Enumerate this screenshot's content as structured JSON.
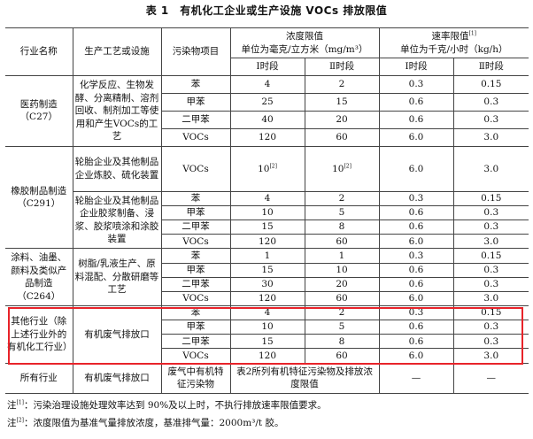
{
  "title": "表 1　有机化工企业或生产设施 VOCs 排放限值",
  "header": {
    "industry": "行业名称",
    "process": "生产工艺或设施",
    "pollutant": "污染物项目",
    "conc": "浓度限值",
    "conc_unit": "单位为毫克/立方米（mg/m³）",
    "rate": "速率限值",
    "rate_sup": "[1]",
    "rate_unit": "单位为千克/小时（kg/h）",
    "stage1": "Ⅰ时段",
    "stage2": "Ⅱ时段"
  },
  "pharma": {
    "industry": "医药制造（C27）",
    "process": "化学反应、生物发酵、分离精制、溶剂回收、制剂加工等使用和产生VOCs的工艺",
    "rows": [
      {
        "p": "苯",
        "c1": "4",
        "c2": "2",
        "r1": "0.3",
        "r2": "0.15"
      },
      {
        "p": "甲苯",
        "c1": "25",
        "c2": "15",
        "r1": "0.6",
        "r2": "0.3"
      },
      {
        "p": "二甲苯",
        "c1": "40",
        "c2": "20",
        "r1": "0.6",
        "r2": "0.3"
      },
      {
        "p": "VOCs",
        "c1": "120",
        "c2": "60",
        "r1": "6.0",
        "r2": "3.0"
      }
    ]
  },
  "rubber": {
    "industry": "橡胶制品制造（C291）",
    "process1": "轮胎企业及其他制品企业炼胶、硫化装置",
    "row1": {
      "p": "VOCs",
      "c1": "10",
      "c1_sup": "[2]",
      "c2": "10",
      "c2_sup": "[2]",
      "r1": "6.0",
      "r2": "3.0"
    },
    "process2": "轮胎企业及其他制品企业胶浆制备、浸浆、胶浆喷涂和涂胶装置",
    "rows": [
      {
        "p": "苯",
        "c1": "4",
        "c2": "2",
        "r1": "0.3",
        "r2": "0.15"
      },
      {
        "p": "甲苯",
        "c1": "10",
        "c2": "5",
        "r1": "0.6",
        "r2": "0.3"
      },
      {
        "p": "二甲苯",
        "c1": "15",
        "c2": "8",
        "r1": "0.6",
        "r2": "0.3"
      },
      {
        "p": "VOCs",
        "c1": "120",
        "c2": "60",
        "r1": "6.0",
        "r2": "3.0"
      }
    ]
  },
  "paint": {
    "industry": "涂料、油墨、颜料及类似产品制造（C264）",
    "process": "树脂/乳液生产、原料混配、分散研磨等工艺",
    "rows": [
      {
        "p": "苯",
        "c1": "1",
        "c2": "1",
        "r1": "0.3",
        "r2": "0.15"
      },
      {
        "p": "甲苯",
        "c1": "15",
        "c2": "10",
        "r1": "0.6",
        "r2": "0.3"
      },
      {
        "p": "二甲苯",
        "c1": "30",
        "c2": "20",
        "r1": "0.6",
        "r2": "0.3"
      },
      {
        "p": "VOCs",
        "c1": "120",
        "c2": "60",
        "r1": "6.0",
        "r2": "3.0"
      }
    ]
  },
  "other": {
    "industry": "其他行业（除上述行业外的有机化工行业）",
    "process": "有机废气排放口",
    "rows": [
      {
        "p": "苯",
        "c1": "4",
        "c2": "2",
        "r1": "0.3",
        "r2": "0.15"
      },
      {
        "p": "甲苯",
        "c1": "10",
        "c2": "5",
        "r1": "0.6",
        "r2": "0.3"
      },
      {
        "p": "二甲苯",
        "c1": "15",
        "c2": "8",
        "r1": "0.6",
        "r2": "0.3"
      },
      {
        "p": "VOCs",
        "c1": "120",
        "c2": "60",
        "r1": "6.0",
        "r2": "3.0"
      }
    ]
  },
  "all": {
    "industry": "所有行业",
    "process": "有机废气排放口",
    "pollutant": "废气中有机特征污染物",
    "conc": "表2所列有机特征污染物及排放浓度限值",
    "r1": "—",
    "r2": "—"
  },
  "notes": {
    "n1_prefix": "注",
    "n1_sup": "[1]",
    "n1_text": "：污染治理设施处理效率达到 90%及以上时，不执行排放速率限值要求。",
    "n2_prefix": "注",
    "n2_sup": "[2]",
    "n2_text": "：浓度限值为基准气量排放浓度，基准排气量：2000m³/t 胶。"
  },
  "highlight_color": "#e8232a"
}
